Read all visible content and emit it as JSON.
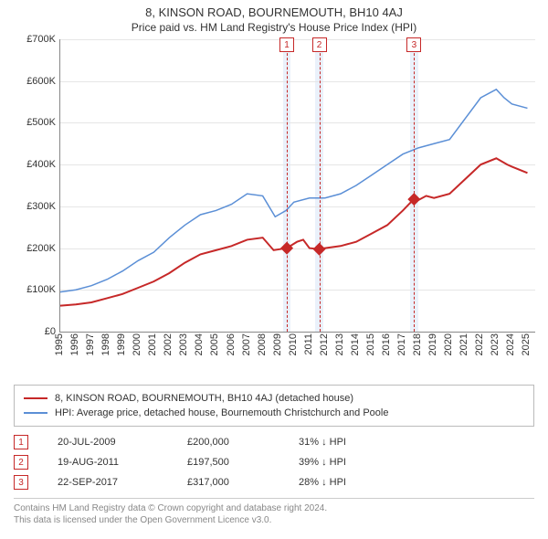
{
  "title": "8, KINSON ROAD, BOURNEMOUTH, BH10 4AJ",
  "subtitle": "Price paid vs. HM Land Registry's House Price Index (HPI)",
  "chart": {
    "type": "line",
    "background_color": "#ffffff",
    "grid_color": "#e6e6e6",
    "axis_color": "#888888",
    "text_color": "#333333",
    "label_fontsize": 11,
    "xlim": [
      1995,
      2025.5
    ],
    "ylim": [
      0,
      700000
    ],
    "ytick_step": 100000,
    "yticks": [
      "£0",
      "£100K",
      "£200K",
      "£300K",
      "£400K",
      "£500K",
      "£600K",
      "£700K"
    ],
    "xticks": [
      1995,
      1996,
      1997,
      1998,
      1999,
      2000,
      2001,
      2002,
      2003,
      2004,
      2005,
      2006,
      2007,
      2008,
      2009,
      2010,
      2011,
      2012,
      2013,
      2014,
      2015,
      2016,
      2017,
      2018,
      2019,
      2020,
      2021,
      2022,
      2023,
      2024,
      2025
    ],
    "series": [
      {
        "name": "price_paid",
        "label": "8, KINSON ROAD, BOURNEMOUTH, BH10 4AJ (detached house)",
        "color": "#c62828",
        "line_width": 2,
        "points": [
          [
            1995,
            62000
          ],
          [
            1996,
            65000
          ],
          [
            1997,
            70000
          ],
          [
            1998,
            80000
          ],
          [
            1999,
            90000
          ],
          [
            2000,
            105000
          ],
          [
            2001,
            120000
          ],
          [
            2002,
            140000
          ],
          [
            2003,
            165000
          ],
          [
            2004,
            185000
          ],
          [
            2005,
            195000
          ],
          [
            2006,
            205000
          ],
          [
            2007,
            220000
          ],
          [
            2008,
            225000
          ],
          [
            2008.7,
            195000
          ],
          [
            2009.55,
            200000
          ],
          [
            2010.2,
            215000
          ],
          [
            2010.6,
            220000
          ],
          [
            2011,
            200000
          ],
          [
            2011.6,
            197500
          ],
          [
            2012,
            200000
          ],
          [
            2013,
            205000
          ],
          [
            2014,
            215000
          ],
          [
            2015,
            235000
          ],
          [
            2016,
            255000
          ],
          [
            2017,
            290000
          ],
          [
            2017.7,
            317000
          ],
          [
            2018,
            315000
          ],
          [
            2018.5,
            325000
          ],
          [
            2019,
            320000
          ],
          [
            2020,
            330000
          ],
          [
            2021,
            365000
          ],
          [
            2022,
            400000
          ],
          [
            2023,
            415000
          ],
          [
            2023.7,
            400000
          ],
          [
            2024,
            395000
          ],
          [
            2025,
            380000
          ]
        ],
        "markers": [
          {
            "year": 2009.55,
            "value": 200000
          },
          {
            "year": 2011.63,
            "value": 197500
          },
          {
            "year": 2017.72,
            "value": 317000
          }
        ],
        "marker_style": "diamond",
        "marker_size": 7
      },
      {
        "name": "hpi",
        "label": "HPI: Average price, detached house, Bournemouth Christchurch and Poole",
        "color": "#5b8fd6",
        "line_width": 1.5,
        "points": [
          [
            1995,
            95000
          ],
          [
            1996,
            100000
          ],
          [
            1997,
            110000
          ],
          [
            1998,
            125000
          ],
          [
            1999,
            145000
          ],
          [
            2000,
            170000
          ],
          [
            2001,
            190000
          ],
          [
            2002,
            225000
          ],
          [
            2003,
            255000
          ],
          [
            2004,
            280000
          ],
          [
            2005,
            290000
          ],
          [
            2006,
            305000
          ],
          [
            2007,
            330000
          ],
          [
            2008,
            325000
          ],
          [
            2008.8,
            275000
          ],
          [
            2009.5,
            290000
          ],
          [
            2010,
            310000
          ],
          [
            2011,
            320000
          ],
          [
            2012,
            320000
          ],
          [
            2013,
            330000
          ],
          [
            2014,
            350000
          ],
          [
            2015,
            375000
          ],
          [
            2016,
            400000
          ],
          [
            2017,
            425000
          ],
          [
            2018,
            440000
          ],
          [
            2019,
            450000
          ],
          [
            2020,
            460000
          ],
          [
            2021,
            510000
          ],
          [
            2022,
            560000
          ],
          [
            2023,
            580000
          ],
          [
            2023.5,
            560000
          ],
          [
            2024,
            545000
          ],
          [
            2025,
            535000
          ]
        ]
      }
    ],
    "marker_bands": [
      {
        "id": "1",
        "year": 2009.55,
        "band_start": 2009.3,
        "band_end": 2009.8,
        "band_color": "#eaf1fb"
      },
      {
        "id": "2",
        "year": 2011.63,
        "band_start": 2011.38,
        "band_end": 2011.88,
        "band_color": "#eaf1fb"
      },
      {
        "id": "3",
        "year": 2017.72,
        "band_start": 2017.47,
        "band_end": 2017.97,
        "band_color": "#eaf1fb"
      }
    ]
  },
  "legend": {
    "items": [
      {
        "color": "#c62828",
        "label": "8, KINSON ROAD, BOURNEMOUTH, BH10 4AJ (detached house)"
      },
      {
        "color": "#5b8fd6",
        "label": "HPI: Average price, detached house, Bournemouth Christchurch and Poole"
      }
    ]
  },
  "callouts": [
    {
      "id": "1",
      "date": "20-JUL-2009",
      "price": "£200,000",
      "delta": "31% ↓ HPI"
    },
    {
      "id": "2",
      "date": "19-AUG-2011",
      "price": "£197,500",
      "delta": "39% ↓ HPI"
    },
    {
      "id": "3",
      "date": "22-SEP-2017",
      "price": "£317,000",
      "delta": "28% ↓ HPI"
    }
  ],
  "footer": {
    "line1": "Contains HM Land Registry data © Crown copyright and database right 2024.",
    "line2": "This data is licensed under the Open Government Licence v3.0."
  }
}
